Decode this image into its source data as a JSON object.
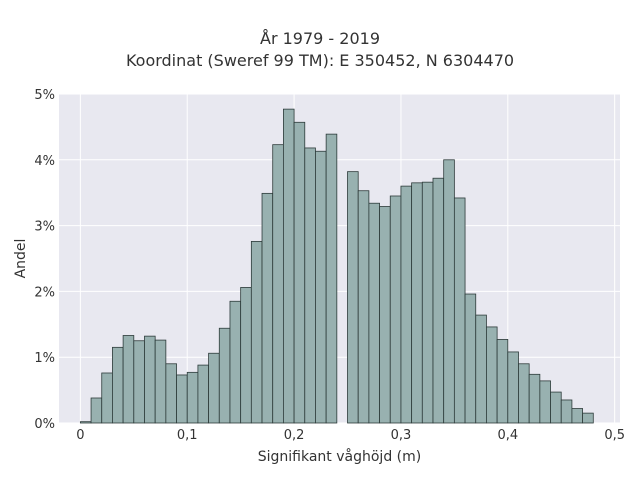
{
  "chart_data": {
    "type": "bar",
    "title_lines": [
      "År 1979 - 2019",
      "Koordinat (Sweref 99 TM): E 350452, N 6304470"
    ],
    "xlabel": "Signifikant våghöjd (m)",
    "ylabel": "Andel",
    "xlim": [
      -0.02,
      0.505
    ],
    "ylim": [
      0,
      5
    ],
    "x_ticks": [
      0,
      0.1,
      0.2,
      0.3,
      0.4,
      0.5
    ],
    "x_tick_labels": [
      "0",
      "0,1",
      "0,2",
      "0,3",
      "0,4",
      "0,5"
    ],
    "y_ticks": [
      0,
      1,
      2,
      3,
      4,
      5
    ],
    "y_tick_labels": [
      "0%",
      "1%",
      "2%",
      "3%",
      "4%",
      "5%"
    ],
    "bin_width": 0.01,
    "bin_starts": [
      0.0,
      0.01,
      0.02,
      0.03,
      0.04,
      0.05,
      0.06,
      0.07,
      0.08,
      0.09,
      0.1,
      0.11,
      0.12,
      0.13,
      0.14,
      0.15,
      0.16,
      0.17,
      0.18,
      0.19,
      0.2,
      0.21,
      0.22,
      0.23,
      0.24,
      0.25,
      0.26,
      0.27,
      0.28,
      0.29,
      0.3,
      0.31,
      0.32,
      0.33,
      0.34,
      0.35,
      0.36,
      0.37,
      0.38,
      0.39,
      0.4,
      0.41,
      0.42,
      0.43,
      0.44,
      0.45,
      0.46,
      0.47
    ],
    "values": [
      0.02,
      0.38,
      0.76,
      1.15,
      1.33,
      1.25,
      1.32,
      1.26,
      0.9,
      0.73,
      0.77,
      0.88,
      1.06,
      1.44,
      1.85,
      2.06,
      2.76,
      3.49,
      4.23,
      4.77,
      4.57,
      4.18,
      4.13,
      4.39,
      0.0,
      3.82,
      3.53,
      3.34,
      3.29,
      3.45,
      3.6,
      3.65,
      3.66,
      3.72,
      4.0,
      3.42,
      1.96,
      1.64,
      1.46,
      1.27,
      1.08,
      0.9,
      0.74,
      0.64,
      0.47,
      0.35,
      0.22,
      0.15
    ],
    "bar_fill": "#98b1b0",
    "bar_stroke": "#2d3b3a",
    "plot_background": "#e8e8f0",
    "grid": true,
    "grid_color": "#ffffff"
  }
}
